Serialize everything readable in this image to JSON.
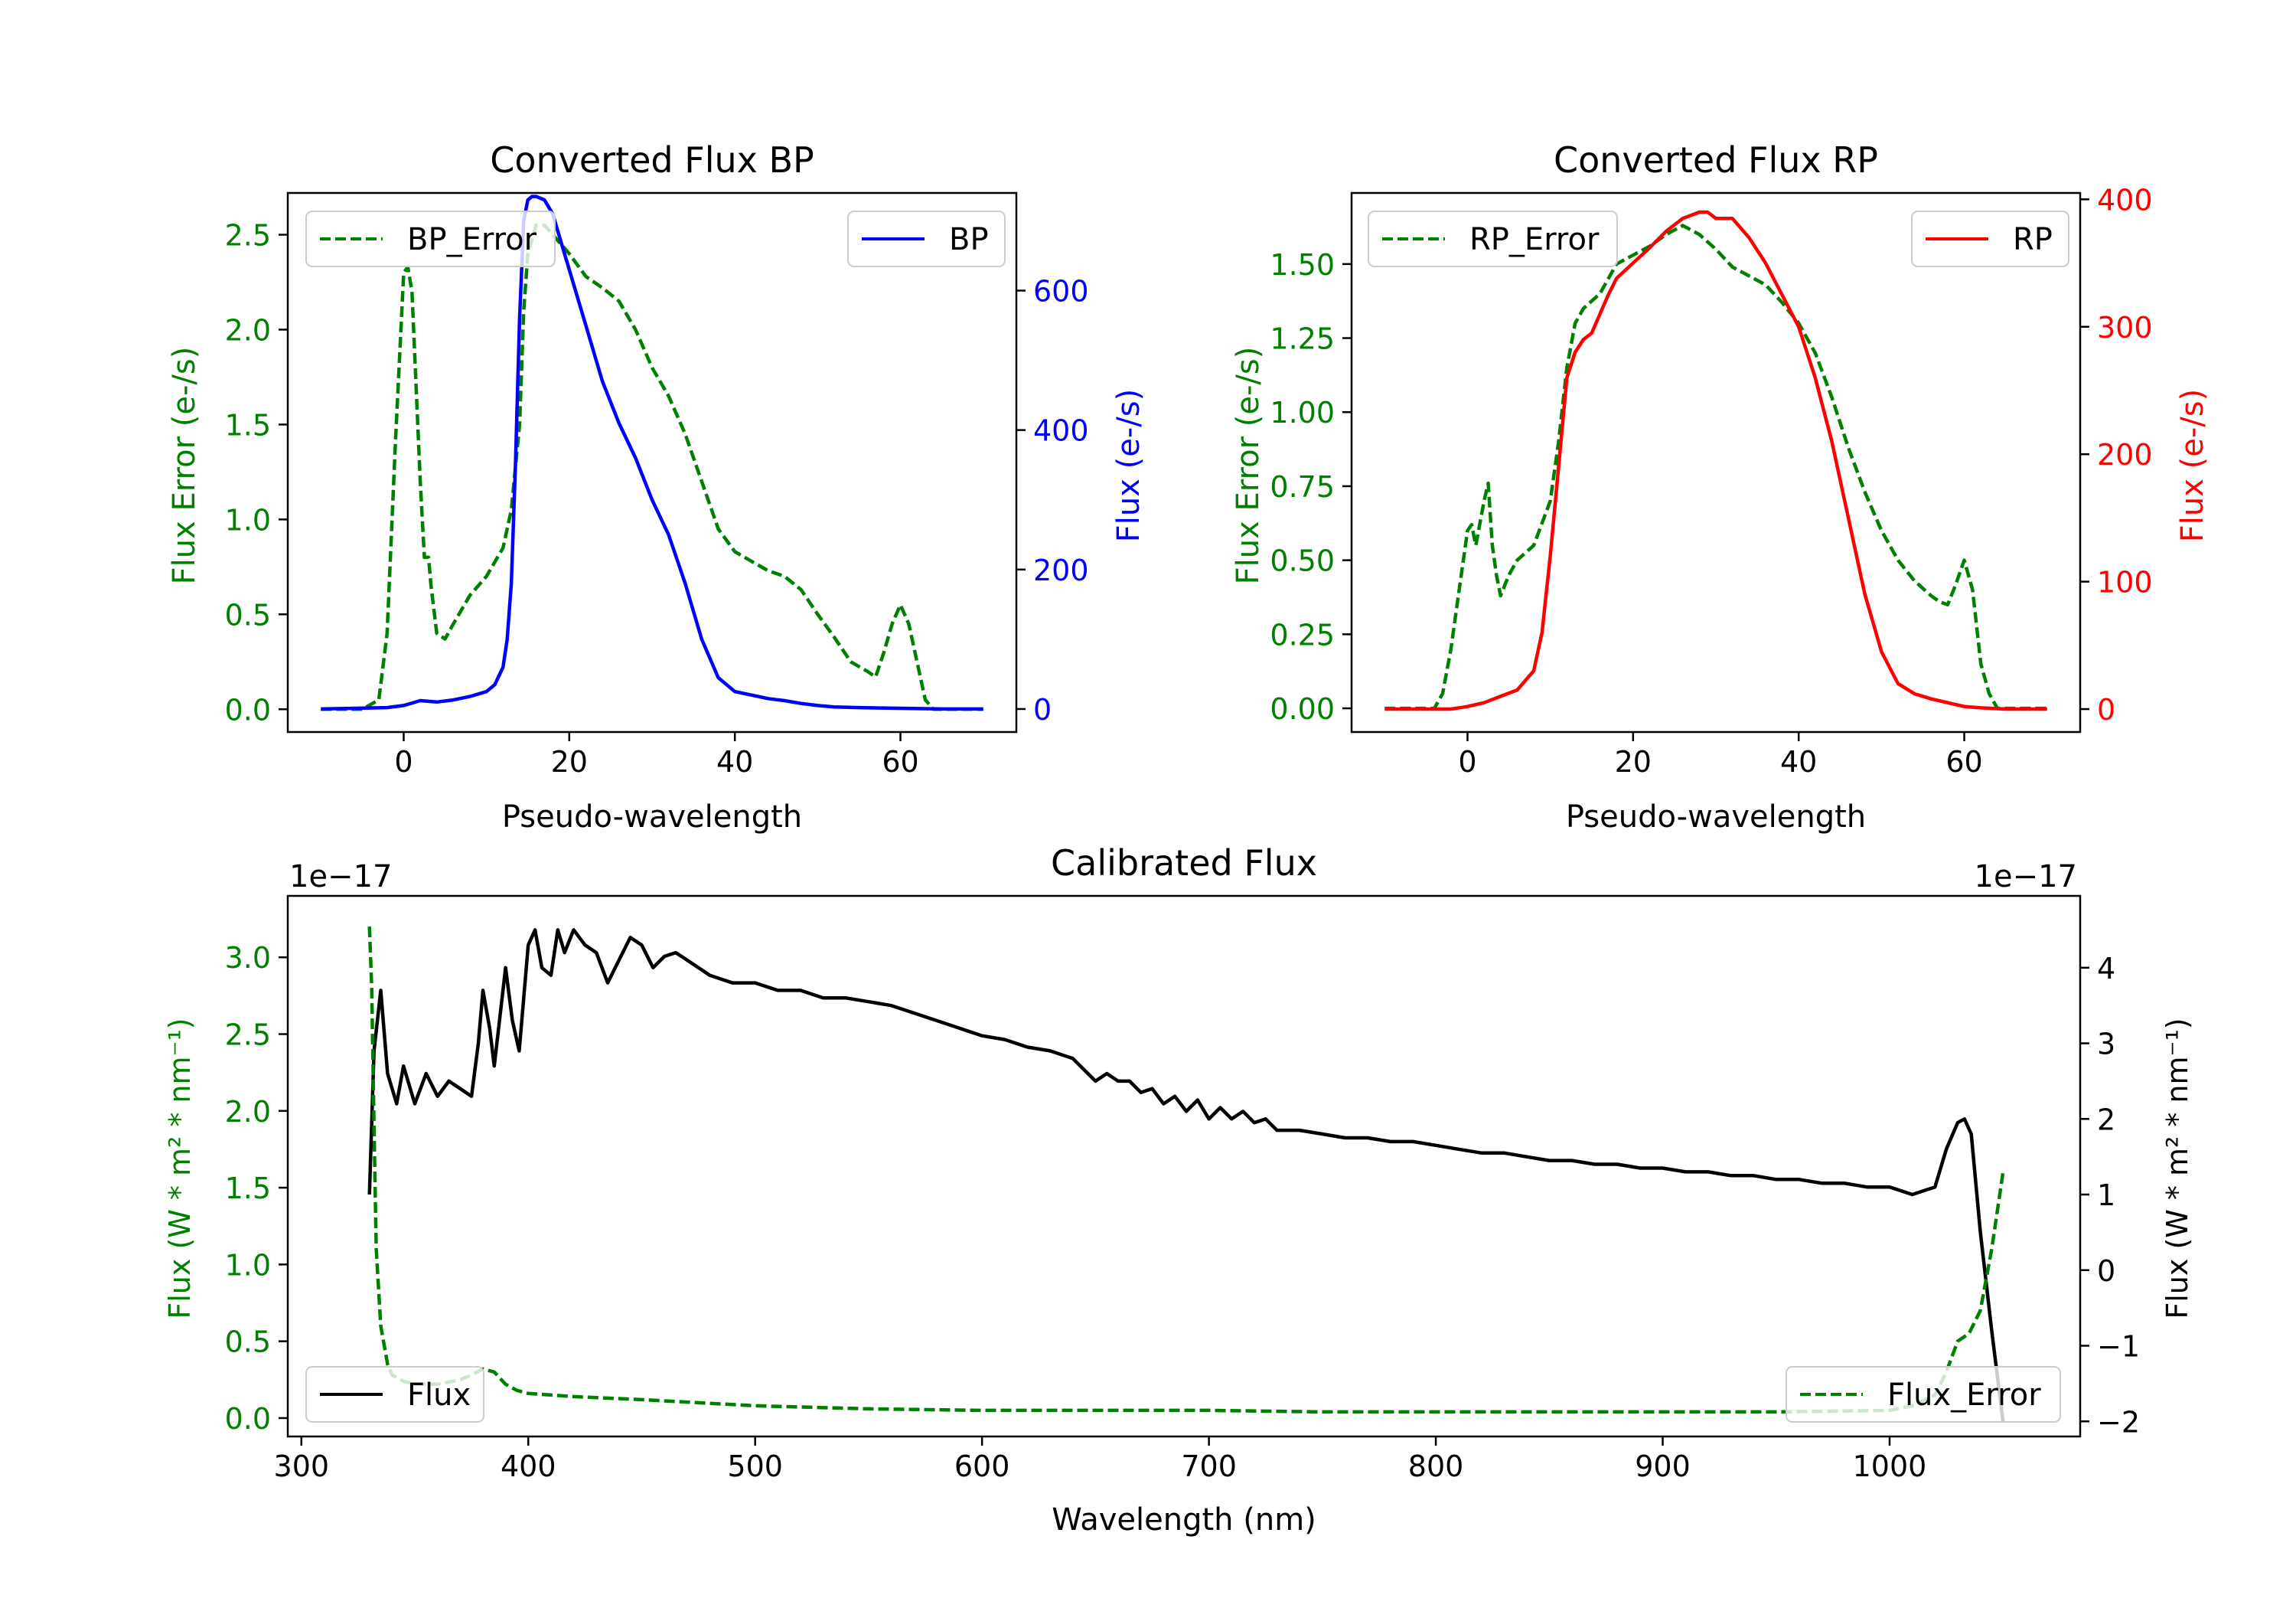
{
  "colors": {
    "bp": "#0000ff",
    "rp": "#ff0000",
    "error": "#008000",
    "flux": "#000000",
    "axis": "#000000"
  },
  "chart_data": [
    {
      "type": "line",
      "title": "Converted Flux BP",
      "xlabel": "Pseudo-wavelength",
      "ylabel_left": "Flux Error (e-/s)",
      "ylabel_right": "Flux (e-/s)",
      "xlim": [
        -14,
        74
      ],
      "ylim_left": [
        -0.12,
        2.72
      ],
      "ylim_right": [
        -33,
        740
      ],
      "xticks": [
        0,
        20,
        40,
        60
      ],
      "yticks_left": [
        0.0,
        0.5,
        1.0,
        1.5,
        2.0,
        2.5
      ],
      "yticks_left_labels": [
        "0.0",
        "0.5",
        "1.0",
        "1.5",
        "2.0",
        "2.5"
      ],
      "yticks_right": [
        0,
        200,
        400,
        600
      ],
      "legend_left": "BP_Error",
      "legend_right": "BP",
      "series": [
        {
          "name": "BP_Error",
          "axis": "left",
          "style": "dashed",
          "color": "#008000",
          "x": [
            -10,
            -5,
            -3,
            -2,
            -1,
            0,
            0.5,
            1,
            2,
            2.5,
            3,
            3.3,
            4,
            5,
            6,
            8,
            10,
            12,
            13,
            14,
            14.5,
            15,
            16,
            17,
            18,
            19,
            20,
            22,
            24,
            26,
            28,
            30,
            32,
            34,
            36,
            38,
            40,
            42,
            44,
            46,
            48,
            50,
            52,
            54,
            56,
            57,
            58,
            59,
            60,
            61,
            62,
            63,
            64,
            65,
            70
          ],
          "y": [
            0.0,
            0.0,
            0.05,
            0.4,
            1.4,
            2.3,
            2.33,
            2.2,
            1.2,
            0.8,
            0.8,
            0.65,
            0.4,
            0.37,
            0.45,
            0.6,
            0.7,
            0.85,
            1.05,
            1.5,
            2.1,
            2.4,
            2.55,
            2.55,
            2.5,
            2.45,
            2.4,
            2.28,
            2.22,
            2.15,
            2.0,
            1.8,
            1.65,
            1.45,
            1.2,
            0.95,
            0.83,
            0.78,
            0.73,
            0.7,
            0.63,
            0.5,
            0.38,
            0.25,
            0.2,
            0.17,
            0.3,
            0.45,
            0.55,
            0.45,
            0.25,
            0.05,
            0.0,
            0.0,
            0.0
          ]
        },
        {
          "name": "BP",
          "axis": "right",
          "style": "solid",
          "color": "#0000ff",
          "x": [
            -10,
            -2,
            0,
            2,
            4,
            6,
            8,
            10,
            11,
            12,
            12.5,
            13,
            13.5,
            14,
            14.5,
            15,
            15.5,
            16,
            17,
            18,
            19,
            20,
            22,
            24,
            26,
            28,
            30,
            32,
            34,
            36,
            38,
            40,
            42,
            44,
            46,
            48,
            50,
            52,
            55,
            60,
            65,
            70
          ],
          "y": [
            0,
            2,
            5,
            12,
            10,
            13,
            18,
            25,
            35,
            60,
            100,
            180,
            350,
            560,
            700,
            730,
            735,
            735,
            730,
            710,
            670,
            630,
            550,
            470,
            410,
            360,
            300,
            250,
            180,
            100,
            45,
            25,
            20,
            15,
            12,
            8,
            5,
            3,
            2,
            1,
            0,
            0
          ]
        }
      ]
    },
    {
      "type": "line",
      "title": "Converted Flux RP",
      "xlabel": "Pseudo-wavelength",
      "ylabel_left": "Flux Error (e-/s)",
      "ylabel_right": "Flux (e-/s)",
      "xlim": [
        -14,
        74
      ],
      "ylim_left": [
        -0.08,
        1.74
      ],
      "ylim_right": [
        -18,
        405
      ],
      "xticks": [
        0,
        20,
        40,
        60
      ],
      "yticks_left": [
        0.0,
        0.25,
        0.5,
        0.75,
        1.0,
        1.25,
        1.5
      ],
      "yticks_left_labels": [
        "0.00",
        "0.25",
        "0.50",
        "0.75",
        "1.00",
        "1.25",
        "1.50"
      ],
      "yticks_right": [
        0,
        100,
        200,
        300,
        400
      ],
      "legend_left": "RP_Error",
      "legend_right": "RP",
      "series": [
        {
          "name": "RP_Error",
          "axis": "left",
          "style": "dashed",
          "color": "#008000",
          "x": [
            -10,
            -4,
            -3,
            -2,
            -1,
            0,
            0.5,
            1,
            2,
            2.5,
            3,
            3.5,
            4,
            5,
            6,
            8,
            10,
            11,
            12,
            13,
            14,
            16,
            18,
            20,
            22,
            24,
            26,
            28,
            30,
            32,
            34,
            36,
            38,
            40,
            42,
            44,
            46,
            48,
            50,
            52,
            54,
            56,
            57,
            58,
            59,
            60,
            61,
            62,
            63,
            64,
            65,
            70
          ],
          "y": [
            0.0,
            0.0,
            0.05,
            0.2,
            0.4,
            0.6,
            0.62,
            0.55,
            0.7,
            0.76,
            0.55,
            0.45,
            0.38,
            0.45,
            0.5,
            0.55,
            0.7,
            0.9,
            1.15,
            1.3,
            1.35,
            1.4,
            1.5,
            1.53,
            1.56,
            1.6,
            1.63,
            1.6,
            1.55,
            1.49,
            1.46,
            1.43,
            1.37,
            1.3,
            1.2,
            1.05,
            0.88,
            0.73,
            0.6,
            0.5,
            0.43,
            0.38,
            0.36,
            0.35,
            0.42,
            0.5,
            0.4,
            0.15,
            0.05,
            0.0,
            0.0,
            0.0
          ]
        },
        {
          "name": "RP",
          "axis": "right",
          "style": "solid",
          "color": "#ff0000",
          "x": [
            -10,
            -2,
            0,
            2,
            4,
            6,
            8,
            9,
            10,
            11,
            12,
            13,
            14,
            15,
            16,
            17,
            18,
            20,
            22,
            24,
            26,
            28,
            29,
            30,
            32,
            34,
            36,
            38,
            40,
            42,
            44,
            46,
            48,
            50,
            52,
            54,
            56,
            58,
            60,
            62,
            65,
            70
          ],
          "y": [
            0,
            0,
            2,
            5,
            10,
            15,
            30,
            60,
            120,
            190,
            260,
            280,
            290,
            295,
            310,
            325,
            338,
            350,
            362,
            375,
            385,
            390,
            390,
            385,
            385,
            370,
            350,
            325,
            300,
            260,
            210,
            150,
            90,
            45,
            20,
            12,
            8,
            5,
            2,
            1,
            0,
            0
          ]
        }
      ]
    },
    {
      "type": "line",
      "title": "Calibrated Flux",
      "xlabel": "Wavelength (nm)",
      "ylabel_left": "Flux (W * m² * nm⁻¹)",
      "ylabel_right": "Flux (W * m² * nm⁻¹)",
      "offset_left": "1e−17",
      "offset_right": "1e−17",
      "xlim": [
        294,
        1084
      ],
      "ylim_left": [
        -0.12,
        3.4
      ],
      "ylim_right": [
        -2.2,
        4.95
      ],
      "xticks": [
        300,
        400,
        500,
        600,
        700,
        800,
        900,
        1000
      ],
      "yticks_left": [
        0.0,
        0.5,
        1.0,
        1.5,
        2.0,
        2.5,
        3.0
      ],
      "yticks_left_labels": [
        "0.0",
        "0.5",
        "1.0",
        "1.5",
        "2.0",
        "2.5",
        "3.0"
      ],
      "yticks_right": [
        -2,
        -1,
        0,
        1,
        2,
        3,
        4
      ],
      "yticks_right_labels": [
        "−2",
        "−1",
        "0",
        "1",
        "2",
        "3",
        "4"
      ],
      "legend_left": "Flux",
      "legend_right": "Flux_Error",
      "series": [
        {
          "name": "Flux",
          "axis": "right",
          "style": "solid",
          "color": "#000000",
          "x": [
            330,
            332,
            335,
            338,
            342,
            345,
            350,
            355,
            360,
            365,
            370,
            375,
            378,
            380,
            383,
            385,
            390,
            393,
            396,
            400,
            403,
            406,
            410,
            413,
            416,
            420,
            425,
            430,
            435,
            440,
            445,
            450,
            455,
            460,
            465,
            470,
            480,
            490,
            500,
            510,
            520,
            530,
            540,
            550,
            560,
            570,
            580,
            590,
            600,
            610,
            620,
            630,
            640,
            650,
            655,
            660,
            665,
            670,
            675,
            680,
            685,
            690,
            695,
            700,
            705,
            710,
            715,
            720,
            725,
            730,
            740,
            750,
            760,
            770,
            780,
            790,
            800,
            810,
            820,
            830,
            840,
            850,
            860,
            870,
            880,
            890,
            900,
            910,
            920,
            930,
            940,
            950,
            960,
            970,
            980,
            990,
            1000,
            1010,
            1020,
            1025,
            1030,
            1033,
            1036,
            1040,
            1045,
            1050
          ],
          "y": [
            1.0,
            2.9,
            3.7,
            2.6,
            2.2,
            2.7,
            2.2,
            2.6,
            2.3,
            2.5,
            2.4,
            2.3,
            3.0,
            3.7,
            3.2,
            2.7,
            4.0,
            3.3,
            2.9,
            4.3,
            4.5,
            4.0,
            3.9,
            4.5,
            4.2,
            4.5,
            4.3,
            4.2,
            3.8,
            4.1,
            4.4,
            4.3,
            4.0,
            4.15,
            4.2,
            4.1,
            3.9,
            3.8,
            3.8,
            3.7,
            3.7,
            3.6,
            3.6,
            3.55,
            3.5,
            3.4,
            3.3,
            3.2,
            3.1,
            3.05,
            2.95,
            2.9,
            2.8,
            2.5,
            2.6,
            2.5,
            2.5,
            2.35,
            2.4,
            2.2,
            2.3,
            2.1,
            2.25,
            2.0,
            2.15,
            2.0,
            2.1,
            1.95,
            2.0,
            1.85,
            1.85,
            1.8,
            1.75,
            1.75,
            1.7,
            1.7,
            1.65,
            1.6,
            1.55,
            1.55,
            1.5,
            1.45,
            1.45,
            1.4,
            1.4,
            1.35,
            1.35,
            1.3,
            1.3,
            1.25,
            1.25,
            1.2,
            1.2,
            1.15,
            1.15,
            1.1,
            1.1,
            1.0,
            1.1,
            1.6,
            1.95,
            2.0,
            1.8,
            0.5,
            -0.8,
            -2.0
          ]
        },
        {
          "name": "Flux_Error",
          "axis": "left",
          "style": "dashed",
          "color": "#008000",
          "x": [
            330,
            331,
            332,
            333,
            335,
            338,
            340,
            345,
            350,
            360,
            370,
            375,
            380,
            385,
            390,
            395,
            400,
            420,
            450,
            500,
            550,
            600,
            650,
            700,
            750,
            800,
            850,
            900,
            950,
            1000,
            1010,
            1020,
            1025,
            1030,
            1035,
            1040,
            1045,
            1050
          ],
          "y": [
            3.2,
            2.8,
            1.9,
            1.1,
            0.6,
            0.35,
            0.28,
            0.24,
            0.22,
            0.22,
            0.25,
            0.28,
            0.32,
            0.3,
            0.22,
            0.18,
            0.16,
            0.14,
            0.12,
            0.08,
            0.06,
            0.05,
            0.05,
            0.05,
            0.04,
            0.04,
            0.04,
            0.04,
            0.04,
            0.05,
            0.08,
            0.15,
            0.3,
            0.5,
            0.55,
            0.7,
            1.1,
            1.6
          ]
        }
      ]
    }
  ]
}
